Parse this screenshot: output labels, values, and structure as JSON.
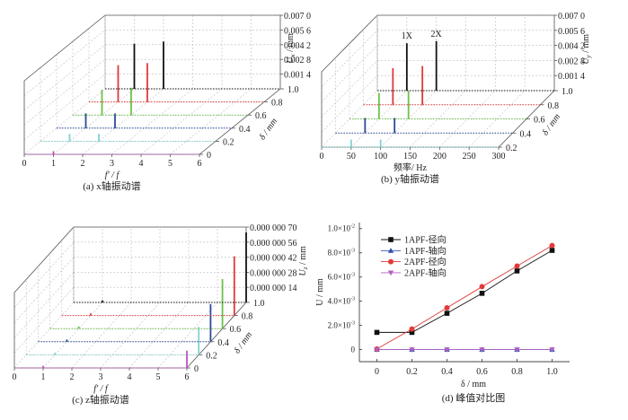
{
  "chart_data": [
    {
      "id": "a",
      "type": "bar",
      "subtype": "3d-waterfall-spectrum",
      "caption": "(a) x轴振动谱",
      "xlabel": "f' / f",
      "ylabel": "δ / mm",
      "zlabel": "U_x / mm",
      "zlabel_main": "U",
      "zlabel_sub": "x",
      "zlabel_unit": " / mm",
      "xlim": [
        0,
        6
      ],
      "x_ticks": [
        "0",
        "1",
        "2",
        "3",
        "4",
        "5",
        "6"
      ],
      "ylim": [
        0,
        1.0
      ],
      "y_ticks": [
        "0",
        "0.2",
        "0.4",
        "0.6",
        "0.8",
        "1.0"
      ],
      "zlim": [
        0,
        0.007
      ],
      "z_ticks": [
        "0.001 4",
        "0.002 8",
        "0.004 2",
        "0.005 6",
        "0.007 0"
      ],
      "z_tick_values": [
        0.0014,
        0.0028,
        0.0042,
        0.0056,
        0.007
      ],
      "grid": true,
      "series": [
        {
          "delta": 0,
          "color": "#c050c0",
          "peaks": [
            {
              "x": 1,
              "value": 0.0003
            }
          ]
        },
        {
          "delta": 0.2,
          "color": "#7fd3d3",
          "peaks": [
            {
              "x": 1,
              "value": 0.0007
            },
            {
              "x": 2,
              "value": 0.0007
            }
          ]
        },
        {
          "delta": 0.4,
          "color": "#2a4a9a",
          "peaks": [
            {
              "x": 1,
              "value": 0.0014
            },
            {
              "x": 2,
              "value": 0.0014
            }
          ]
        },
        {
          "delta": 0.6,
          "color": "#6cc04a",
          "peaks": [
            {
              "x": 1,
              "value": 0.0024
            },
            {
              "x": 2,
              "value": 0.0026
            }
          ]
        },
        {
          "delta": 0.8,
          "color": "#e03a3a",
          "peaks": [
            {
              "x": 1,
              "value": 0.0035
            },
            {
              "x": 2,
              "value": 0.0037
            }
          ]
        },
        {
          "delta": 1.0,
          "color": "#111111",
          "peaks": [
            {
              "x": 1,
              "value": 0.0043
            },
            {
              "x": 2,
              "value": 0.0045
            }
          ]
        }
      ]
    },
    {
      "id": "b",
      "type": "bar",
      "subtype": "3d-waterfall-spectrum",
      "caption": "(b) y轴振动谱",
      "xlabel": "频率/ Hz",
      "ylabel": "δ / mm",
      "zlabel": "U_y / mm",
      "zlabel_main": "U",
      "zlabel_sub": "y",
      "zlabel_unit": " / mm",
      "xlim": [
        0,
        300
      ],
      "x_ticks": [
        "0",
        "50",
        "100",
        "150",
        "200",
        "250",
        "300"
      ],
      "ylim": [
        0.2,
        1.0
      ],
      "y_ticks": [
        "0.2",
        "0.4",
        "0.6",
        "0.8",
        "1.0"
      ],
      "zlim": [
        0,
        0.007
      ],
      "z_ticks": [
        "0.001 4",
        "0.002 8",
        "0.004 2",
        "0.005 6",
        "0.007 0"
      ],
      "z_tick_values": [
        0.0014,
        0.0028,
        0.0042,
        0.0056,
        0.007
      ],
      "annotations": [
        "1X",
        "2X"
      ],
      "grid": true,
      "series": [
        {
          "delta": 0.2,
          "color": "#7fd3d3",
          "peaks": [
            {
              "x": 50,
              "value": 0.0007
            },
            {
              "x": 100,
              "value": 0.0007
            }
          ]
        },
        {
          "delta": 0.4,
          "color": "#2a4a9a",
          "peaks": [
            {
              "x": 50,
              "value": 0.0014
            },
            {
              "x": 100,
              "value": 0.0014
            }
          ]
        },
        {
          "delta": 0.6,
          "color": "#6cc04a",
          "peaks": [
            {
              "x": 50,
              "value": 0.0024
            },
            {
              "x": 100,
              "value": 0.0026
            }
          ]
        },
        {
          "delta": 0.8,
          "color": "#e03a3a",
          "peaks": [
            {
              "x": 50,
              "value": 0.0034
            },
            {
              "x": 100,
              "value": 0.0036
            }
          ]
        },
        {
          "delta": 1.0,
          "color": "#111111",
          "peaks": [
            {
              "x": 50,
              "value": 0.0044
            },
            {
              "x": 100,
              "value": 0.0046
            }
          ]
        }
      ]
    },
    {
      "id": "c",
      "type": "bar",
      "subtype": "3d-waterfall-spectrum",
      "caption": "(c) z轴振动谱",
      "xlabel": "f' / f",
      "ylabel": "δ / mm",
      "zlabel": "U_z / mm",
      "zlabel_main": "U",
      "zlabel_sub": "z",
      "zlabel_unit": " / mm",
      "xlim": [
        0,
        6
      ],
      "x_ticks": [
        "0",
        "1",
        "2",
        "3",
        "4",
        "5",
        "6"
      ],
      "ylim": [
        0,
        1.0
      ],
      "y_ticks": [
        "0",
        "0.2",
        "0.4",
        "0.6",
        "0.8",
        "1.0"
      ],
      "zlim": [
        0,
        7e-07
      ],
      "z_ticks": [
        "0.000 000 14",
        "0.000 000 28",
        "0.000 000 42",
        "0.000 000 56",
        "0.000 000 70"
      ],
      "z_tick_values": [
        1.4e-07,
        2.8e-07,
        4.2e-07,
        5.6e-07,
        7e-07
      ],
      "grid": true,
      "series": [
        {
          "delta": 0,
          "color": "#c050c0",
          "peaks": [
            {
              "x": 1,
              "value": 2e-08
            },
            {
              "x": 6,
              "value": 1.6e-07
            }
          ]
        },
        {
          "delta": 0.2,
          "color": "#7fd3d3",
          "peaks": [
            {
              "x": 1,
              "value": 2e-08
            },
            {
              "x": 6,
              "value": 2.6e-07
            }
          ]
        },
        {
          "delta": 0.4,
          "color": "#2a4a9a",
          "peaks": [
            {
              "x": 1,
              "value": 2e-08
            },
            {
              "x": 6,
              "value": 3.5e-07
            }
          ]
        },
        {
          "delta": 0.6,
          "color": "#6cc04a",
          "peaks": [
            {
              "x": 1,
              "value": 2e-08
            },
            {
              "x": 6,
              "value": 4.6e-07
            }
          ]
        },
        {
          "delta": 0.8,
          "color": "#e03a3a",
          "peaks": [
            {
              "x": 1,
              "value": 2e-08
            },
            {
              "x": 6,
              "value": 5.5e-07
            }
          ]
        },
        {
          "delta": 1.0,
          "color": "#111111",
          "peaks": [
            {
              "x": 1,
              "value": 2e-08
            },
            {
              "x": 6,
              "value": 6.5e-07
            }
          ]
        }
      ]
    },
    {
      "id": "d",
      "type": "line",
      "caption": "(d) 峰值对比图",
      "xlabel": "δ / mm",
      "ylabel": "U / mm",
      "xlim": [
        -0.1,
        1.1
      ],
      "ylim": [
        -0.001,
        0.0105
      ],
      "x": [
        0,
        0.2,
        0.4,
        0.6,
        0.8,
        1.0
      ],
      "x_ticks": [
        "0",
        "0.2",
        "0.4",
        "0.6",
        "0.8",
        "1.0"
      ],
      "y_tick_values": [
        0,
        0.002,
        0.004,
        0.006,
        0.008,
        0.01
      ],
      "y_ticks": [
        {
          "mant": "0",
          "exp": ""
        },
        {
          "mant": "2.0×10",
          "exp": "-3"
        },
        {
          "mant": "4.0×10",
          "exp": "-3"
        },
        {
          "mant": "6.0×10",
          "exp": "-3"
        },
        {
          "mant": "8.0×10",
          "exp": "-3"
        },
        {
          "mant": "1.0×10",
          "exp": "-2"
        }
      ],
      "legend_position": "top-left",
      "grid": false,
      "series": [
        {
          "name": "1APF-径向",
          "color": "#111111",
          "marker": "square",
          "values": [
            0.00142,
            0.00142,
            0.003,
            0.00465,
            0.0065,
            0.0082
          ]
        },
        {
          "name": "1APF-轴向",
          "color": "#3050b0",
          "marker": "triangle-up",
          "values": [
            0,
            0,
            0,
            0,
            0,
            0
          ]
        },
        {
          "name": "2APF-径向",
          "color": "#e03a3a",
          "marker": "circle",
          "values": [
            5e-05,
            0.0017,
            0.00345,
            0.0052,
            0.0069,
            0.0086
          ]
        },
        {
          "name": "2APF-轴向",
          "color": "#b060c0",
          "marker": "triangle-down",
          "values": [
            0,
            0,
            0,
            0,
            0,
            0
          ]
        }
      ]
    }
  ]
}
